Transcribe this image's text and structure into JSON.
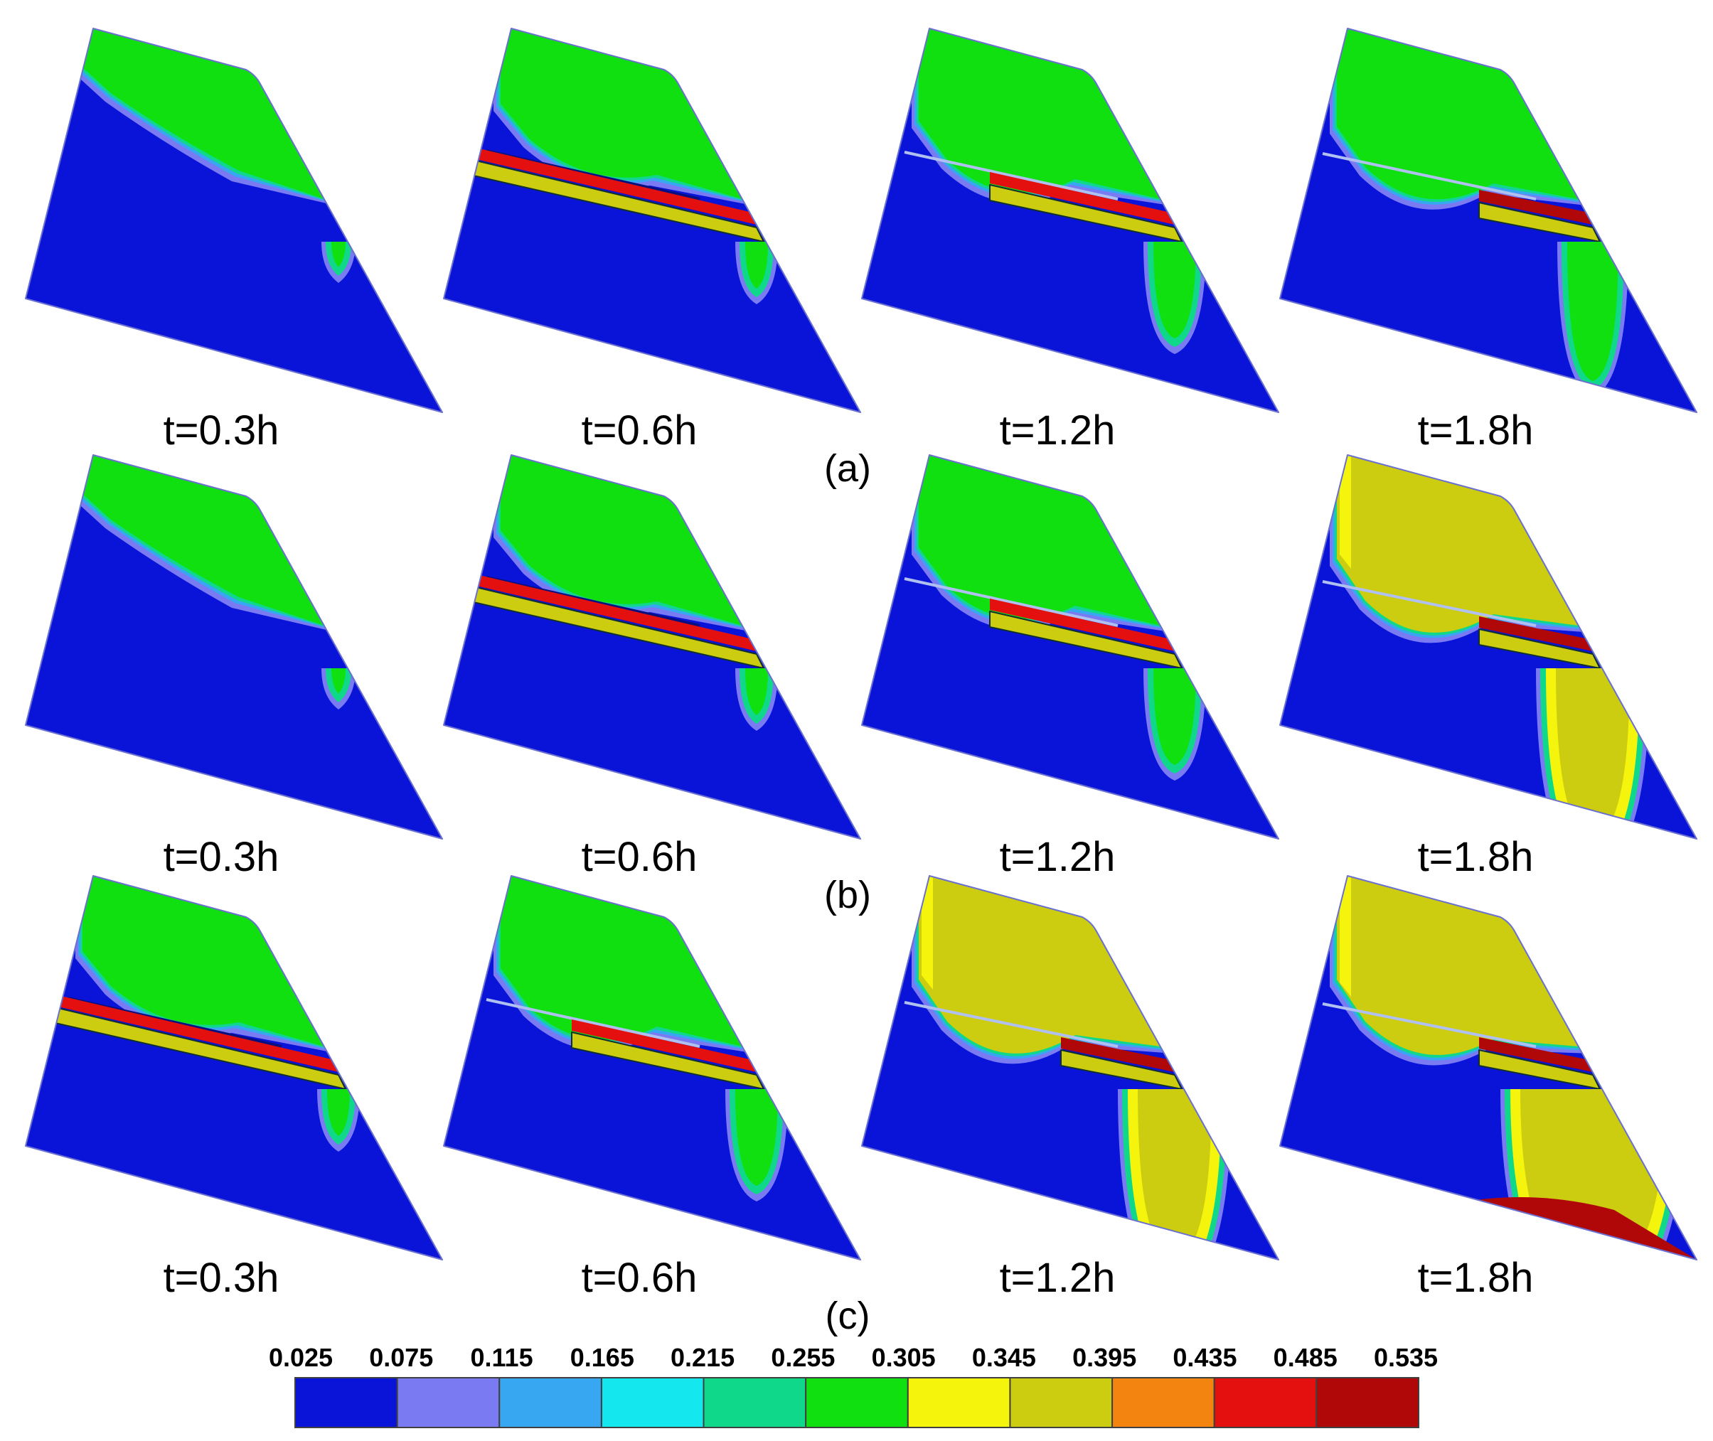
{
  "figure": {
    "time_labels": [
      "t=0.3h",
      "t=0.6h",
      "t=1.2h",
      "t=1.8h"
    ],
    "rows": [
      {
        "label": "(a)",
        "stages": [
          0,
          1,
          2,
          3
        ]
      },
      {
        "label": "(b)",
        "stages": [
          0,
          1,
          2,
          4
        ]
      },
      {
        "label": "(c)",
        "stages": [
          1,
          2,
          4,
          5
        ]
      }
    ]
  },
  "legend": {
    "values": [
      "0.025",
      "0.075",
      "0.115",
      "0.165",
      "0.215",
      "0.255",
      "0.305",
      "0.345",
      "0.395",
      "0.435",
      "0.485",
      "0.535"
    ],
    "colors": [
      "#0a14d8",
      "#7a7af2",
      "#37a7f2",
      "#14e8ee",
      "#10d88a",
      "#10e010",
      "#f4f40c",
      "#cccc10",
      "#f48410",
      "#e41010",
      "#b00808"
    ]
  },
  "colors": {
    "background": "#0a14d8",
    "wet_front": "#10e010",
    "saturated": "#cccc10",
    "high": "#e41010",
    "very_high": "#b00808"
  }
}
